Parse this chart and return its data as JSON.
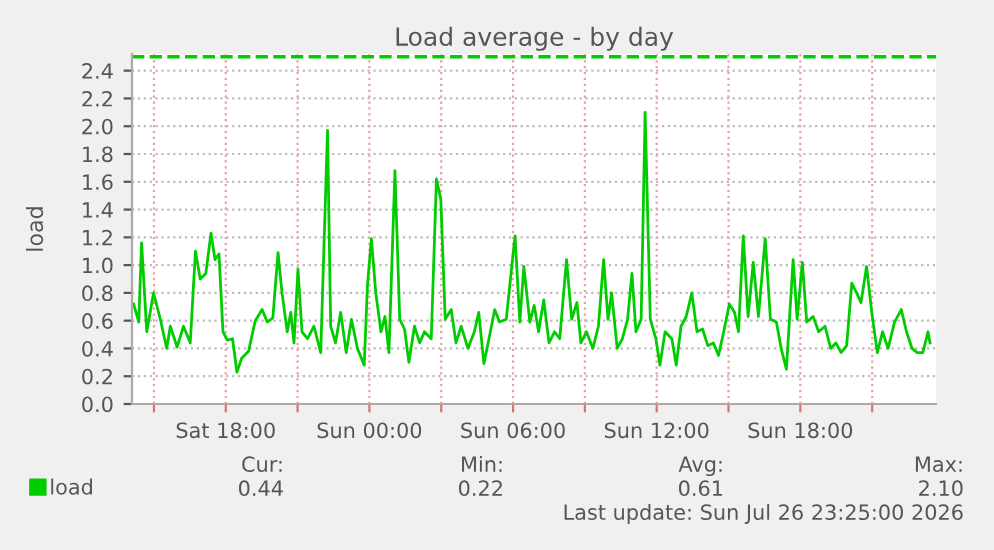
{
  "chart_data": {
    "type": "line",
    "title": "Load average - by day",
    "ylabel": "load",
    "x": [
      "2026-07-25T14:09",
      "2026-07-25T14:22",
      "2026-07-25T14:29",
      "2026-07-25T14:42",
      "2026-07-25T14:59",
      "2026-07-25T15:16",
      "2026-07-25T15:32",
      "2026-07-25T15:41",
      "2026-07-25T15:58",
      "2026-07-25T16:14",
      "2026-07-25T16:31",
      "2026-07-25T16:44",
      "2026-07-25T16:56",
      "2026-07-25T17:10",
      "2026-07-25T17:23",
      "2026-07-25T17:33",
      "2026-07-25T17:43",
      "2026-07-25T17:53",
      "2026-07-25T18:04",
      "2026-07-25T18:17",
      "2026-07-25T18:28",
      "2026-07-25T18:40",
      "2026-07-25T18:57",
      "2026-07-25T19:14",
      "2026-07-25T19:31",
      "2026-07-25T19:44",
      "2026-07-25T19:58",
      "2026-07-25T20:11",
      "2026-07-25T20:21",
      "2026-07-25T20:34",
      "2026-07-25T20:43",
      "2026-07-25T20:51",
      "2026-07-25T21:01",
      "2026-07-25T21:11",
      "2026-07-25T21:25",
      "2026-07-25T21:41",
      "2026-07-25T21:58",
      "2026-07-25T22:15",
      "2026-07-25T22:23",
      "2026-07-25T22:35",
      "2026-07-25T22:48",
      "2026-07-25T23:02",
      "2026-07-25T23:15",
      "2026-07-25T23:30",
      "2026-07-25T23:47",
      "2026-07-25T23:55",
      "2026-07-26T00:05",
      "2026-07-26T00:16",
      "2026-07-26T00:29",
      "2026-07-26T00:39",
      "2026-07-26T00:49",
      "2026-07-26T01:04",
      "2026-07-26T01:16",
      "2026-07-26T01:28",
      "2026-07-26T01:39",
      "2026-07-26T01:53",
      "2026-07-26T02:06",
      "2026-07-26T02:18",
      "2026-07-26T02:35",
      "2026-07-26T02:48",
      "2026-07-26T02:59",
      "2026-07-26T03:10",
      "2026-07-26T03:25",
      "2026-07-26T03:37",
      "2026-07-26T03:50",
      "2026-07-26T04:07",
      "2026-07-26T04:23",
      "2026-07-26T04:34",
      "2026-07-26T04:47",
      "2026-07-26T05:01",
      "2026-07-26T05:14",
      "2026-07-26T05:26",
      "2026-07-26T05:43",
      "2026-07-26T05:56",
      "2026-07-26T06:05",
      "2026-07-26T06:17",
      "2026-07-26T06:27",
      "2026-07-26T06:42",
      "2026-07-26T06:53",
      "2026-07-26T07:04",
      "2026-07-26T07:17",
      "2026-07-26T07:30",
      "2026-07-26T07:44",
      "2026-07-26T07:57",
      "2026-07-26T08:14",
      "2026-07-26T08:27",
      "2026-07-26T08:40",
      "2026-07-26T08:50",
      "2026-07-26T09:04",
      "2026-07-26T09:20",
      "2026-07-26T09:34",
      "2026-07-26T09:47",
      "2026-07-26T09:58",
      "2026-07-26T10:07",
      "2026-07-26T10:21",
      "2026-07-26T10:34",
      "2026-07-26T10:47",
      "2026-07-26T10:58",
      "2026-07-26T11:08",
      "2026-07-26T11:21",
      "2026-07-26T11:31",
      "2026-07-26T11:44",
      "2026-07-26T11:58",
      "2026-07-26T12:08",
      "2026-07-26T12:21",
      "2026-07-26T12:38",
      "2026-07-26T12:49",
      "2026-07-26T13:01",
      "2026-07-26T13:14",
      "2026-07-26T13:28",
      "2026-07-26T13:41",
      "2026-07-26T13:55",
      "2026-07-26T14:08",
      "2026-07-26T14:22",
      "2026-07-26T14:35",
      "2026-07-26T14:48",
      "2026-07-26T15:02",
      "2026-07-26T15:15",
      "2026-07-26T15:25",
      "2026-07-26T15:37",
      "2026-07-26T15:49",
      "2026-07-26T16:02",
      "2026-07-26T16:15",
      "2026-07-26T16:32",
      "2026-07-26T16:45",
      "2026-07-26T17:00",
      "2026-07-26T17:12",
      "2026-07-26T17:25",
      "2026-07-26T17:42",
      "2026-07-26T17:52",
      "2026-07-26T18:05",
      "2026-07-26T18:16",
      "2026-07-26T18:32",
      "2026-07-26T18:46",
      "2026-07-26T19:02",
      "2026-07-26T19:16",
      "2026-07-26T19:29",
      "2026-07-26T19:42",
      "2026-07-26T19:56",
      "2026-07-26T20:09",
      "2026-07-26T20:21",
      "2026-07-26T20:32",
      "2026-07-26T20:46",
      "2026-07-26T20:59",
      "2026-07-26T21:13",
      "2026-07-26T21:26",
      "2026-07-26T21:40",
      "2026-07-26T21:56",
      "2026-07-26T22:13",
      "2026-07-26T22:26",
      "2026-07-26T22:40",
      "2026-07-26T22:53",
      "2026-07-26T23:07",
      "2026-07-26T23:20",
      "2026-07-26T23:25"
    ],
    "series": [
      {
        "name": "load",
        "color": "#00cc00",
        "values": [
          0.72,
          0.59,
          1.16,
          0.52,
          0.8,
          0.61,
          0.4,
          0.56,
          0.41,
          0.56,
          0.44,
          1.1,
          0.9,
          0.94,
          1.23,
          1.04,
          1.08,
          0.52,
          0.46,
          0.47,
          0.23,
          0.33,
          0.38,
          0.6,
          0.68,
          0.59,
          0.62,
          1.09,
          0.8,
          0.52,
          0.66,
          0.44,
          0.97,
          0.52,
          0.47,
          0.56,
          0.37,
          1.97,
          0.56,
          0.44,
          0.66,
          0.37,
          0.61,
          0.4,
          0.28,
          0.85,
          1.19,
          0.8,
          0.52,
          0.63,
          0.37,
          1.68,
          0.61,
          0.54,
          0.3,
          0.56,
          0.44,
          0.52,
          0.47,
          1.62,
          1.47,
          0.61,
          0.68,
          0.44,
          0.56,
          0.4,
          0.52,
          0.66,
          0.29,
          0.49,
          0.68,
          0.59,
          0.61,
          0.97,
          1.21,
          0.59,
          0.99,
          0.59,
          0.71,
          0.52,
          0.75,
          0.44,
          0.52,
          0.47,
          1.04,
          0.61,
          0.73,
          0.44,
          0.52,
          0.4,
          0.56,
          1.04,
          0.61,
          0.8,
          0.4,
          0.47,
          0.61,
          0.94,
          0.52,
          0.61,
          2.1,
          0.61,
          0.47,
          0.28,
          0.52,
          0.47,
          0.28,
          0.56,
          0.63,
          0.8,
          0.52,
          0.54,
          0.42,
          0.44,
          0.35,
          0.52,
          0.72,
          0.66,
          0.52,
          1.21,
          0.63,
          1.02,
          0.63,
          1.19,
          0.61,
          0.59,
          0.4,
          0.25,
          1.04,
          0.61,
          1.02,
          0.59,
          0.63,
          0.52,
          0.56,
          0.4,
          0.44,
          0.37,
          0.42,
          0.87,
          0.8,
          0.73,
          0.99,
          0.66,
          0.37,
          0.52,
          0.4,
          0.59,
          0.68,
          0.52,
          0.4,
          0.37,
          0.37,
          0.52,
          0.44
        ]
      }
    ],
    "xlim": [
      "2026-07-25T14:05",
      "2026-07-26T23:40"
    ],
    "xticks": [
      {
        "value": "2026-07-25T15:00",
        "label": null
      },
      {
        "value": "2026-07-25T18:00",
        "label": "Sat 18:00"
      },
      {
        "value": "2026-07-25T21:00",
        "label": null
      },
      {
        "value": "2026-07-26T00:00",
        "label": "Sun 00:00"
      },
      {
        "value": "2026-07-26T03:00",
        "label": null
      },
      {
        "value": "2026-07-26T06:00",
        "label": "Sun 06:00"
      },
      {
        "value": "2026-07-26T09:00",
        "label": null
      },
      {
        "value": "2026-07-26T12:00",
        "label": "Sun 12:00"
      },
      {
        "value": "2026-07-26T15:00",
        "label": null
      },
      {
        "value": "2026-07-26T18:00",
        "label": "Sun 18:00"
      },
      {
        "value": "2026-07-26T21:00",
        "label": null
      }
    ],
    "ylim": [
      0,
      2.52
    ],
    "yticks": [
      {
        "value": 0,
        "label": "0.0"
      },
      {
        "value": 0.2,
        "label": "0.2"
      },
      {
        "value": 0.4,
        "label": "0.4"
      },
      {
        "value": 0.6,
        "label": "0.6"
      },
      {
        "value": 0.8,
        "label": "0.8"
      },
      {
        "value": 1.0,
        "label": "1.0"
      },
      {
        "value": 1.2,
        "label": "1.2"
      },
      {
        "value": 1.4,
        "label": "1.4"
      },
      {
        "value": 1.6,
        "label": "1.6"
      },
      {
        "value": 1.8,
        "label": "1.8"
      },
      {
        "value": 2.0,
        "label": "2.0"
      },
      {
        "value": 2.2,
        "label": "2.2"
      },
      {
        "value": 2.4,
        "label": "2.4"
      }
    ],
    "ref_lines": [
      {
        "axis": "y",
        "value": 2.5,
        "color": "#00cc00",
        "line_style": "dashed"
      }
    ],
    "grid": true,
    "legend": "bottom left",
    "marker": "none",
    "line_style": "solid",
    "annotations": [
      "Cur:",
      "0.44",
      "Min:",
      "0.22",
      "Avg:",
      "0.61",
      "Max:",
      "2.10",
      "Last update: Sun Jul 26 23:25:00 2026"
    ]
  }
}
